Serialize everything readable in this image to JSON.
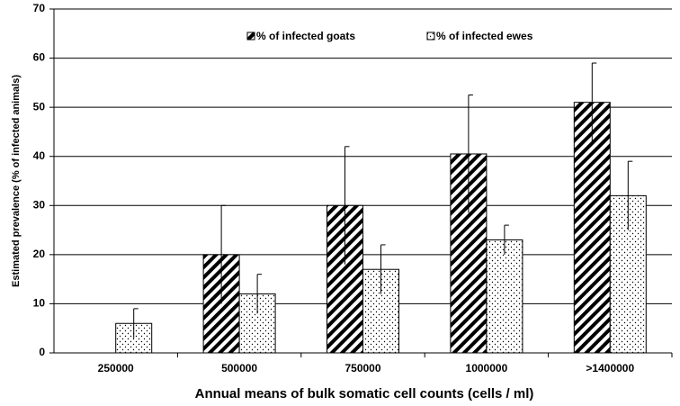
{
  "chart_data": {
    "type": "bar",
    "x_label": "Annual means of bulk somatic cell counts (cells / ml)",
    "y_label": "Estimated prevalence (% of infected animals)",
    "categories": [
      "250000",
      "500000",
      "750000",
      "1000000",
      ">1400000"
    ],
    "series": [
      {
        "name": "% of infected goats",
        "color": "#000000",
        "pattern": "hatch",
        "values": [
          null,
          20,
          30,
          40.5,
          51
        ],
        "errors": [
          null,
          10,
          12,
          12,
          8
        ]
      },
      {
        "name": "% of infected ewes",
        "color": "#000000",
        "pattern": "dots",
        "values": [
          6,
          12,
          17,
          23,
          32
        ],
        "errors": [
          3,
          4,
          5,
          3,
          7
        ]
      }
    ],
    "ylim": [
      0,
      70
    ],
    "yticks": [
      0,
      10,
      20,
      30,
      40,
      50,
      60,
      70
    ],
    "grid": true,
    "legend": "top"
  }
}
